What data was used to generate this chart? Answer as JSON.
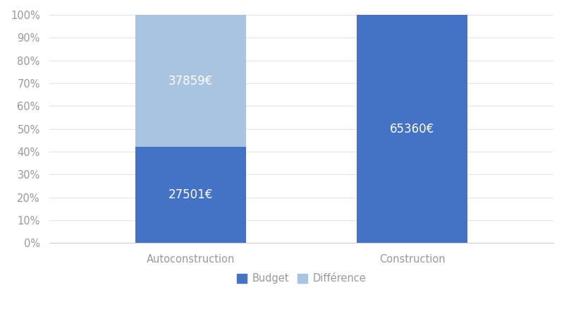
{
  "categories": [
    "Autoconstruction",
    "Construction"
  ],
  "budget_values": [
    27501,
    65360
  ],
  "difference_values": [
    37859,
    0
  ],
  "budget_color": "#4472C4",
  "difference_color": "#A8C4E0",
  "text_color": "#FFFFFF",
  "legend_labels": [
    "Budget",
    "Différence"
  ],
  "bar_width": 0.22,
  "background_color": "#FFFFFF",
  "label_fontsize": 12,
  "tick_fontsize": 10.5,
  "legend_fontsize": 10.5,
  "tick_color": "#999999",
  "spine_color": "#CCCCCC",
  "grid_color": "#E5E5E5"
}
